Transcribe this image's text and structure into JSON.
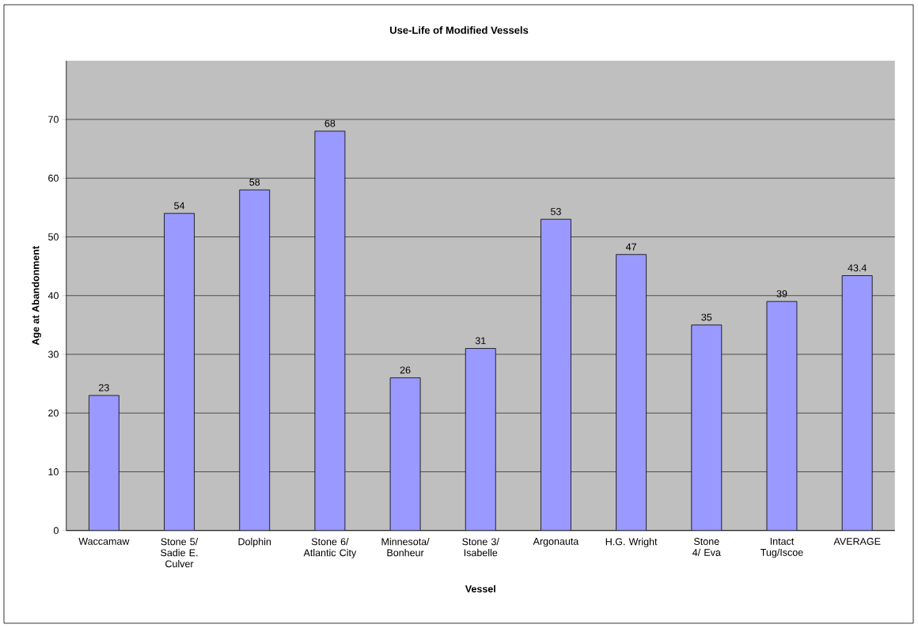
{
  "chart_data": {
    "type": "bar",
    "title": "Use-Life of Modified Vessels",
    "xlabel": "Vessel",
    "ylabel": "Age at Abandonment",
    "categories": [
      "Waccamaw",
      "Stone 5/ Sadie E. Culver",
      "Dolphin",
      "Stone 6/ Atlantic City",
      "Minnesota/ Bonheur",
      "Stone 3/ Isabelle",
      "Argonauta",
      "H.G. Wright",
      "Stone 4/ Eva",
      "Intact Tug/Iscoe",
      "AVERAGE"
    ],
    "values": [
      23,
      54,
      58,
      68,
      26,
      31,
      53,
      47,
      35,
      39,
      43.4
    ],
    "color": "#9999ff",
    "ylim": [
      0,
      80
    ],
    "yticks": [
      0,
      10,
      20,
      30,
      40,
      50,
      60,
      70
    ],
    "grid": "y",
    "data_labels": true
  }
}
